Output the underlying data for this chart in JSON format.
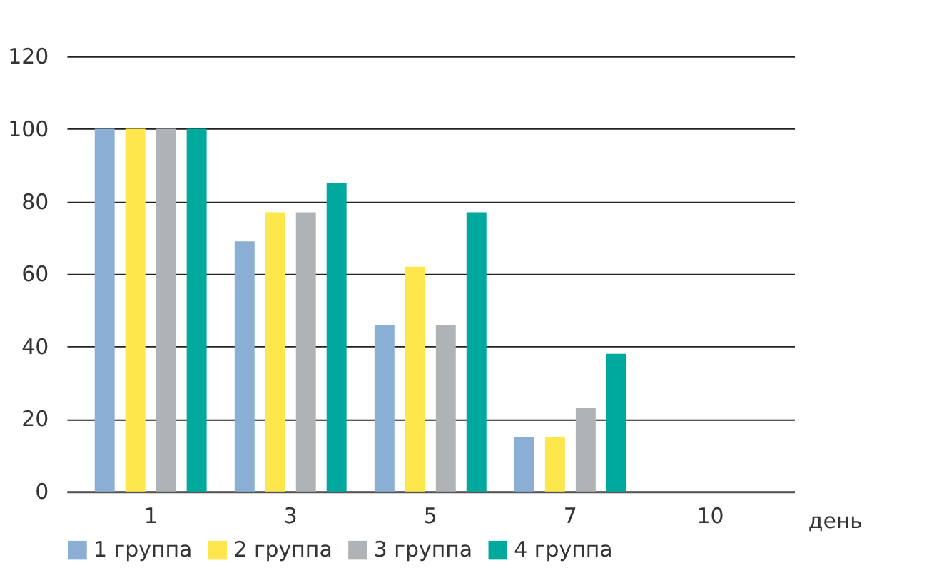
{
  "chart_data": {
    "type": "bar",
    "xlabel": "день",
    "categories": [
      "1",
      "3",
      "5",
      "7",
      "10"
    ],
    "series": [
      {
        "name": "1 группа",
        "color": "#8aaed4",
        "values": [
          100,
          69,
          46,
          15,
          0
        ]
      },
      {
        "name": "2 группа",
        "color": "#fde74c",
        "values": [
          100,
          77,
          62,
          15,
          0
        ]
      },
      {
        "name": "3 группа",
        "color": "#b0b3b5",
        "values": [
          100,
          77,
          46,
          23,
          0
        ]
      },
      {
        "name": "4 группа",
        "color": "#00a99d",
        "values": [
          100,
          85,
          77,
          38,
          0
        ]
      }
    ],
    "ylim": [
      0,
      120
    ],
    "yticks": [
      0,
      20,
      40,
      60,
      80,
      100,
      120
    ],
    "grid": "y",
    "legend": "bottom"
  }
}
